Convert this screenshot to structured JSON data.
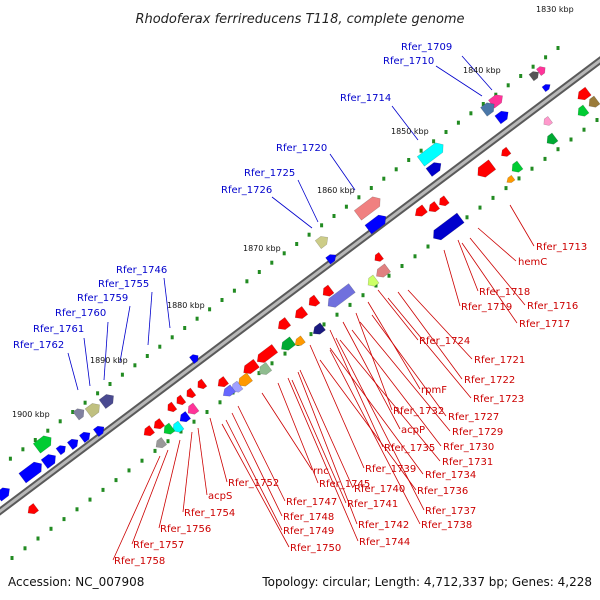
{
  "title": "Rhodoferax ferrireducens T118, complete genome",
  "footer": {
    "accession": "Accession: NC_007908",
    "summary": "Topology: circular; Length: 4,712,337 bp; Genes: 4,228"
  },
  "ruler": [
    {
      "label": "1830 kbp"
    },
    {
      "label": "1840 kbp"
    },
    {
      "label": "1850 kbp"
    },
    {
      "label": "1860 kbp"
    },
    {
      "label": "1870 kbp"
    },
    {
      "label": "1880 kbp"
    },
    {
      "label": "1890 kbp"
    },
    {
      "label": "1900 kbp"
    }
  ],
  "top_labels": [
    "Rfer_1709",
    "Rfer_1710",
    "Rfer_1714",
    "Rfer_1720",
    "Rfer_1725",
    "Rfer_1726",
    "Rfer_1746",
    "Rfer_1755",
    "Rfer_1759",
    "Rfer_1760",
    "Rfer_1761",
    "Rfer_1762"
  ],
  "bottom_labels": [
    "Rfer_1713",
    "hemC",
    "Rfer_1718",
    "Rfer_1716",
    "Rfer_1719",
    "Rfer_1717",
    "Rfer_1724",
    "Rfer_1721",
    "Rfer_1722",
    "Rfer_1723",
    "rpmF",
    "Rfer_1732",
    "Rfer_1727",
    "acpP",
    "Rfer_1729",
    "Rfer_1735",
    "Rfer_1730",
    "Rfer_1731",
    "Rfer_1739",
    "Rfer_1734",
    "rnc",
    "Rfer_1745",
    "Rfer_1740",
    "Rfer_1736",
    "Rfer_1752",
    "acpS",
    "Rfer_1747",
    "Rfer_1741",
    "Rfer_1737",
    "Rfer_1754",
    "Rfer_1748",
    "Rfer_1742",
    "Rfer_1738",
    "Rfer_1756",
    "Rfer_1749",
    "Rfer_1744",
    "Rfer_1750",
    "Rfer_1757",
    "Rfer_1758"
  ],
  "colors": {
    "backbone": "#8a8a8a",
    "top_label": "#0000cc",
    "bottom_label": "#cc0000",
    "tick": "#228b22"
  }
}
